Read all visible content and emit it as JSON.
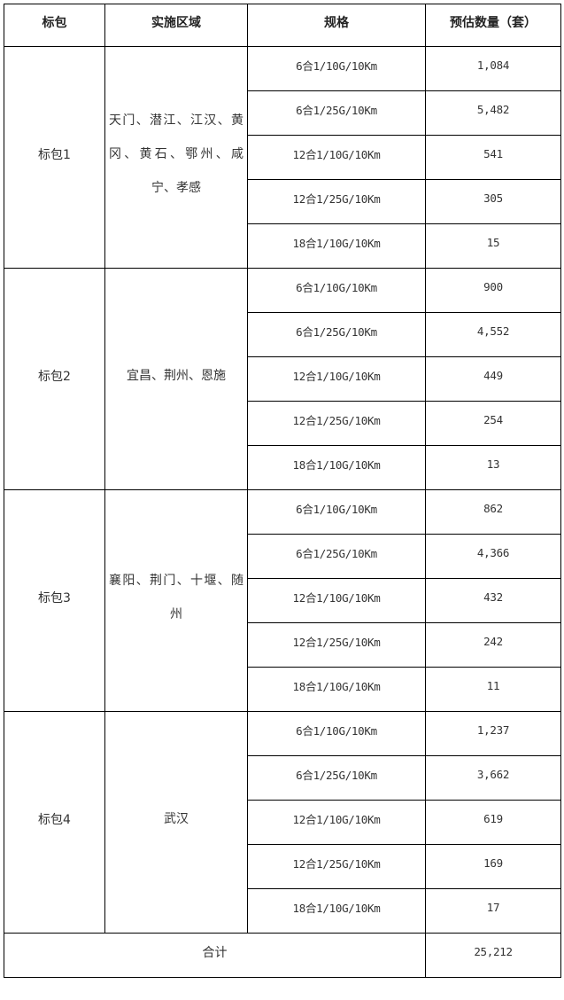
{
  "table": {
    "headers": [
      "标包",
      "实施区域",
      "规格",
      "预估数量（套）"
    ],
    "packages": [
      {
        "name": "标包1",
        "region": "天门、潜江、江汉、黄冈、黄石、鄂州、咸宁、孝感",
        "rows": [
          {
            "spec": "6合1/10G/10Km",
            "qty": "1,084"
          },
          {
            "spec": "6合1/25G/10Km",
            "qty": "5,482"
          },
          {
            "spec": "12合1/10G/10Km",
            "qty": "541"
          },
          {
            "spec": "12合1/25G/10Km",
            "qty": "305"
          },
          {
            "spec": "18合1/10G/10Km",
            "qty": "15"
          }
        ]
      },
      {
        "name": "标包2",
        "region": "宜昌、荆州、恩施",
        "rows": [
          {
            "spec": "6合1/10G/10Km",
            "qty": "900"
          },
          {
            "spec": "6合1/25G/10Km",
            "qty": "4,552"
          },
          {
            "spec": "12合1/10G/10Km",
            "qty": "449"
          },
          {
            "spec": "12合1/25G/10Km",
            "qty": "254"
          },
          {
            "spec": "18合1/10G/10Km",
            "qty": "13"
          }
        ]
      },
      {
        "name": "标包3",
        "region": "襄阳、荆门、十堰、随州",
        "rows": [
          {
            "spec": "6合1/10G/10Km",
            "qty": "862"
          },
          {
            "spec": "6合1/25G/10Km",
            "qty": "4,366"
          },
          {
            "spec": "12合1/10G/10Km",
            "qty": "432"
          },
          {
            "spec": "12合1/25G/10Km",
            "qty": "242"
          },
          {
            "spec": "18合1/10G/10Km",
            "qty": "11"
          }
        ]
      },
      {
        "name": "标包4",
        "region": "武汉",
        "rows": [
          {
            "spec": "6合1/10G/10Km",
            "qty": "1,237"
          },
          {
            "spec": "6合1/25G/10Km",
            "qty": "3,662"
          },
          {
            "spec": "12合1/10G/10Km",
            "qty": "619"
          },
          {
            "spec": "12合1/25G/10Km",
            "qty": "169"
          },
          {
            "spec": "18合1/10G/10Km",
            "qty": "17"
          }
        ]
      }
    ],
    "total_label": "合计",
    "total_value": "25,212"
  }
}
